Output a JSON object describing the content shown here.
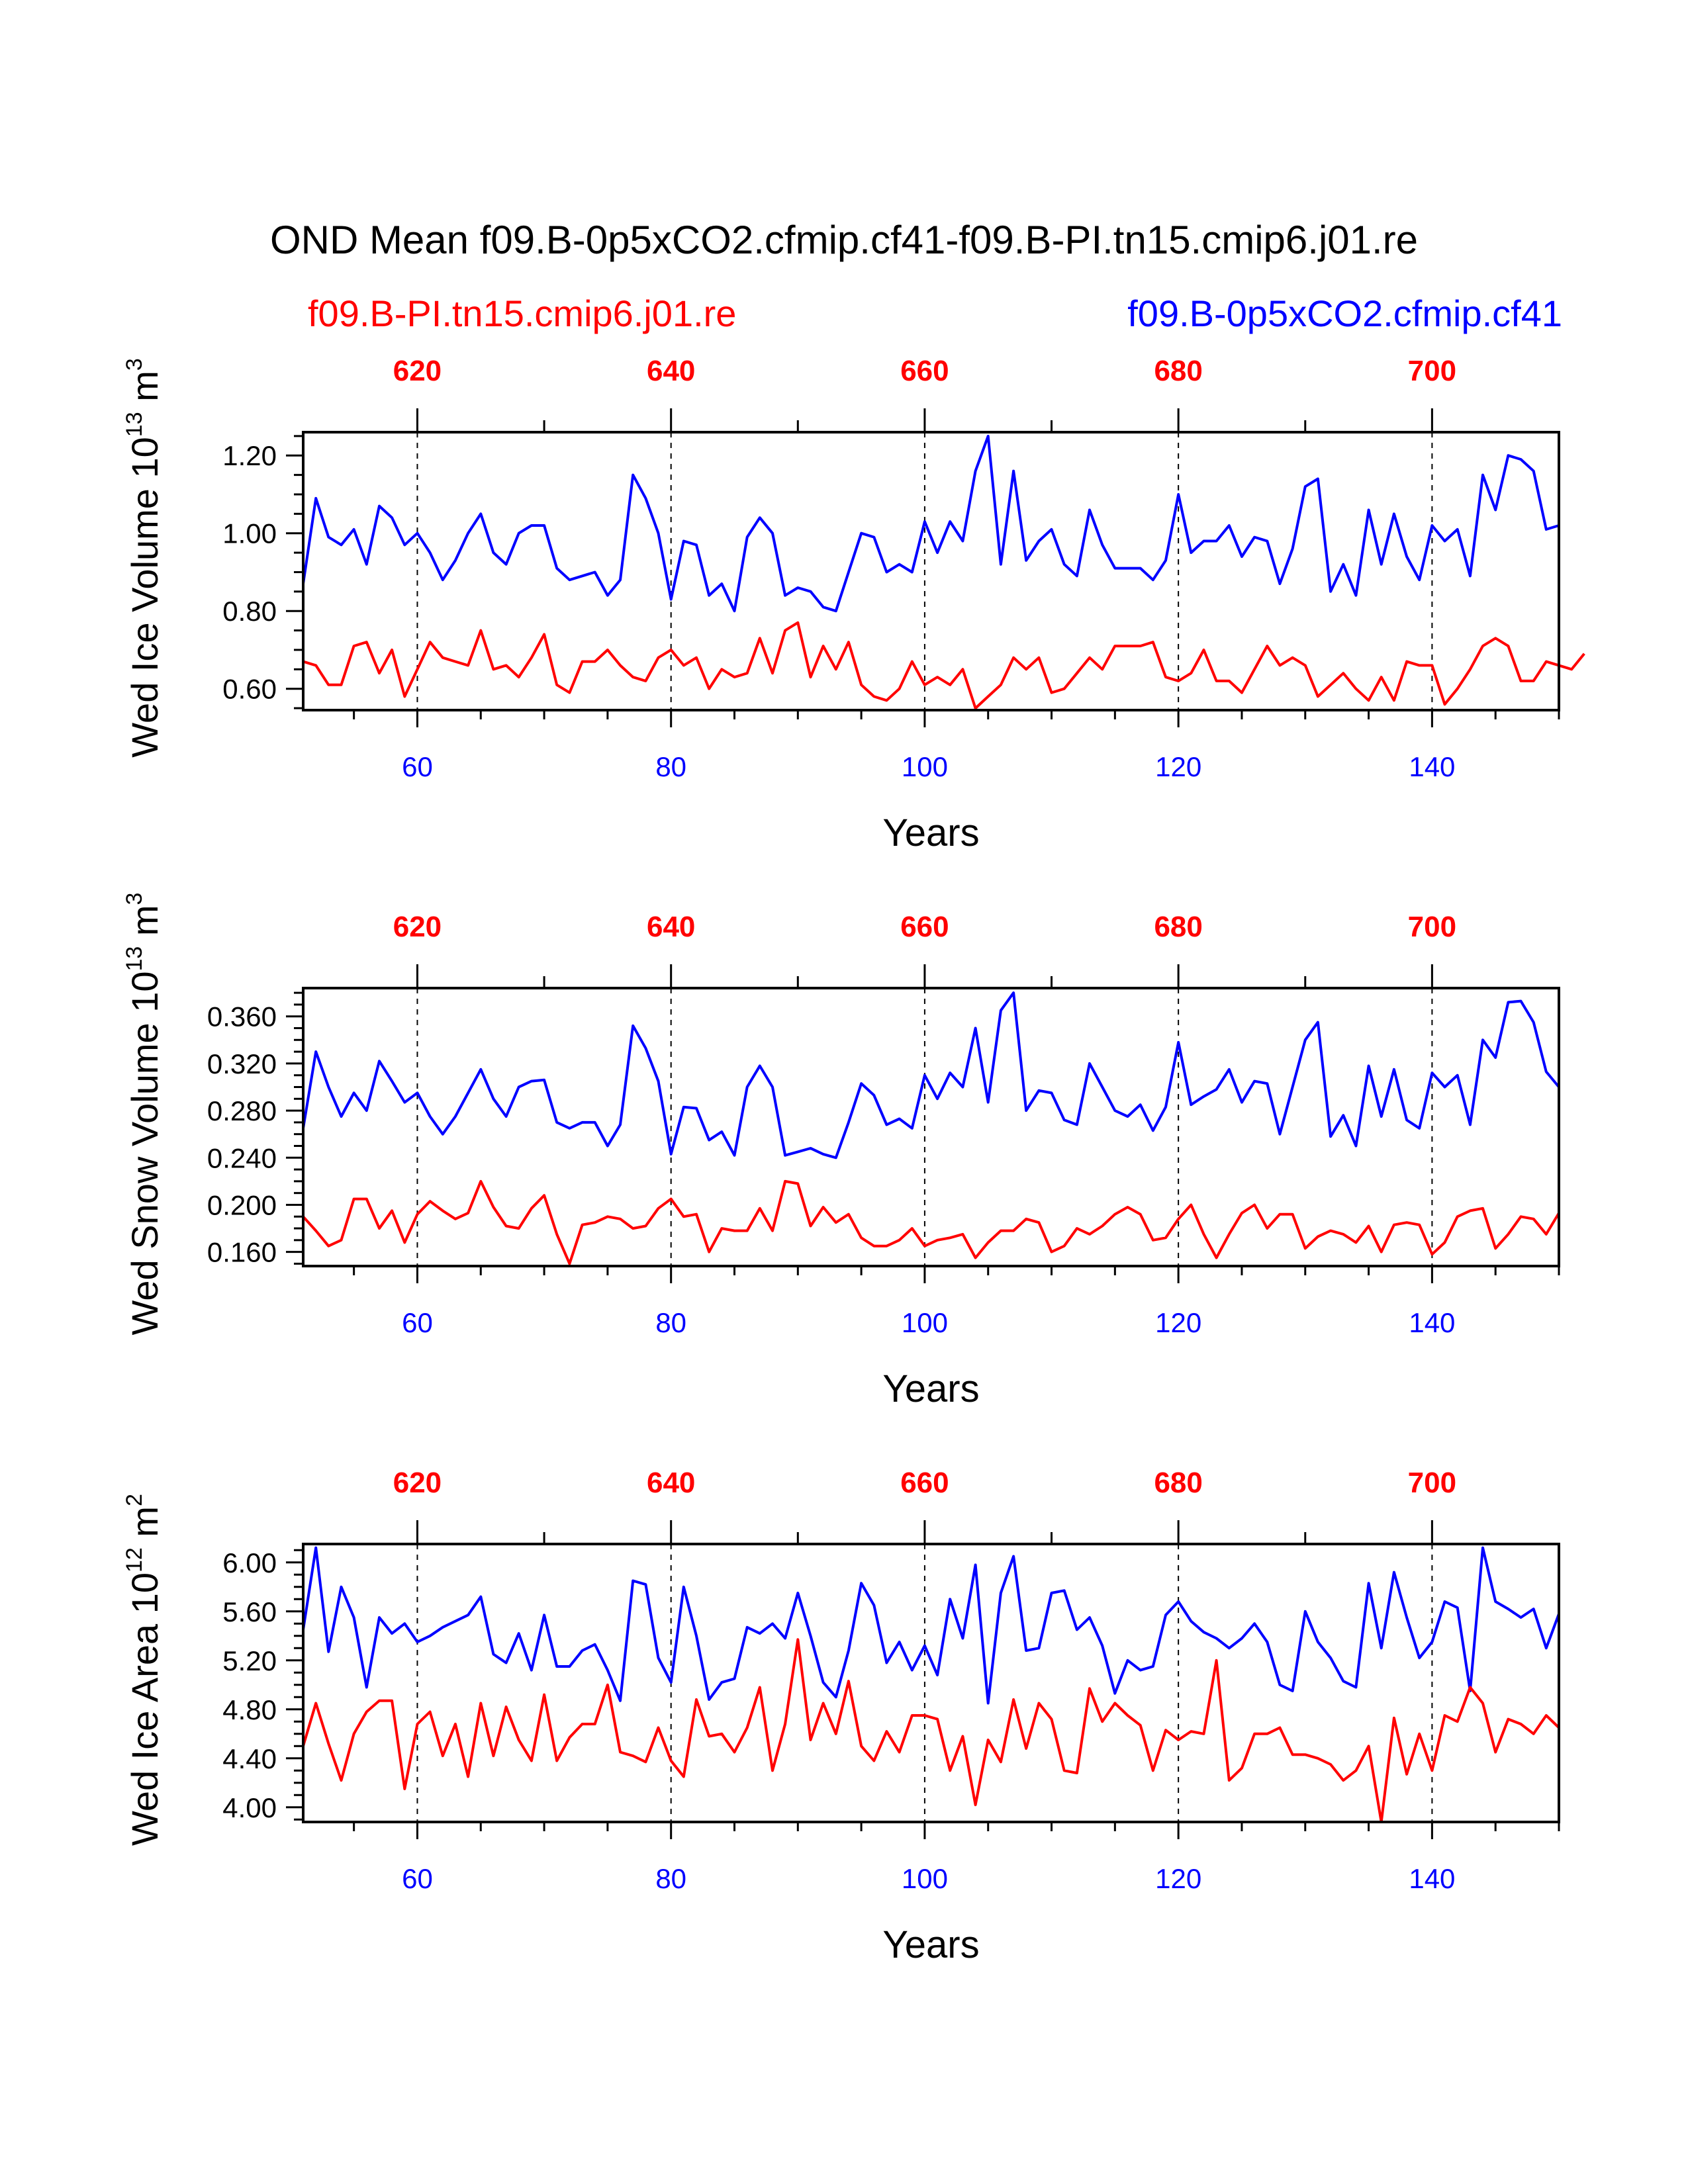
{
  "title": "OND Mean f09.B-0p5xCO2.cfmip.cf41-f09.B-PI.tn15.cmip6.j01.re",
  "legend": {
    "left": "f09.B-PI.tn15.cmip6.j01.re",
    "right": "f09.B-0p5xCO2.cfmip.cf41",
    "left_color": "#ff0000",
    "right_color": "#0000ff"
  },
  "chart_data": [
    {
      "type": "line",
      "ylabel_main": "Wed Ice Volume 10",
      "ylabel_exp": "13",
      "ylabel_unit": " m",
      "ylabel_unit_exp": "3",
      "xlabel": "Years",
      "xlim": [
        51,
        150
      ],
      "ylim": [
        0.545,
        1.26
      ],
      "yticks": [
        0.6,
        0.8,
        1.0,
        1.2
      ],
      "ytick_labels": [
        "0.60",
        "0.80",
        "1.00",
        "1.20"
      ],
      "xticks": [
        60,
        80,
        100,
        120,
        140
      ],
      "xtick_labels": [
        "60",
        "80",
        "100",
        "120",
        "140"
      ],
      "top_ticks": [
        620,
        640,
        660,
        680,
        700
      ],
      "top_tick_labels": [
        "620",
        "640",
        "660",
        "680",
        "700"
      ],
      "x_start": 51,
      "series": [
        {
          "name": "f09.B-0p5xCO2.cfmip.cf41",
          "color": "#0000ff",
          "values": [
            0.87,
            1.09,
            0.99,
            0.97,
            1.01,
            0.92,
            1.07,
            1.04,
            0.97,
            1.0,
            0.95,
            0.88,
            0.93,
            1.0,
            1.05,
            0.95,
            0.92,
            1.0,
            1.02,
            1.02,
            0.91,
            0.88,
            0.89,
            0.9,
            0.84,
            0.88,
            1.15,
            1.09,
            1.0,
            0.83,
            0.98,
            0.97,
            0.84,
            0.87,
            0.8,
            0.99,
            1.04,
            1.0,
            0.84,
            0.86,
            0.85,
            0.81,
            0.8,
            0.9,
            1.0,
            0.99,
            0.9,
            0.92,
            0.9,
            1.03,
            0.95,
            1.03,
            0.98,
            1.16,
            1.25,
            0.92,
            1.16,
            0.93,
            0.98,
            1.01,
            0.92,
            0.89,
            1.06,
            0.97,
            0.91,
            0.91,
            0.91,
            0.88,
            0.93,
            1.1,
            0.95,
            0.98,
            0.98,
            1.02,
            0.94,
            0.99,
            0.98,
            0.87,
            0.96,
            1.12,
            1.14,
            0.85,
            0.92,
            0.84,
            1.06,
            0.92,
            1.05,
            0.94,
            0.88,
            1.02,
            0.98,
            1.01,
            0.89,
            1.15,
            1.06,
            1.2,
            1.19,
            1.16,
            1.01,
            1.02
          ]
        },
        {
          "name": "f09.B-PI.tn15.cmip6.j01.re",
          "color": "#ff0000",
          "values": [
            0.67,
            0.66,
            0.61,
            0.61,
            0.71,
            0.72,
            0.64,
            0.7,
            0.58,
            0.65,
            0.72,
            0.68,
            0.67,
            0.66,
            0.75,
            0.65,
            0.66,
            0.63,
            0.68,
            0.74,
            0.61,
            0.59,
            0.67,
            0.67,
            0.7,
            0.66,
            0.63,
            0.62,
            0.68,
            0.7,
            0.66,
            0.68,
            0.6,
            0.65,
            0.63,
            0.64,
            0.73,
            0.64,
            0.75,
            0.77,
            0.63,
            0.71,
            0.65,
            0.72,
            0.61,
            0.58,
            0.57,
            0.6,
            0.67,
            0.61,
            0.63,
            0.61,
            0.65,
            0.55,
            0.58,
            0.61,
            0.68,
            0.65,
            0.68,
            0.59,
            0.6,
            0.64,
            0.68,
            0.65,
            0.71,
            0.71,
            0.71,
            0.72,
            0.63,
            0.62,
            0.64,
            0.7,
            0.62,
            0.62,
            0.59,
            0.65,
            0.71,
            0.66,
            0.68,
            0.66,
            0.58,
            0.61,
            0.64,
            0.6,
            0.57,
            0.63,
            0.57,
            0.67,
            0.66,
            0.66,
            0.56,
            0.6,
            0.65,
            0.71,
            0.73,
            0.71,
            0.62,
            0.62,
            0.67,
            0.66,
            0.65,
            0.69
          ]
        }
      ]
    },
    {
      "type": "line",
      "ylabel_main": "Wed Snow Volume 10",
      "ylabel_exp": "13",
      "ylabel_unit": " m",
      "ylabel_unit_exp": "3",
      "xlabel": "Years",
      "xlim": [
        51,
        150
      ],
      "ylim": [
        0.148,
        0.384
      ],
      "yticks": [
        0.16,
        0.2,
        0.24,
        0.28,
        0.32,
        0.36
      ],
      "ytick_labels": [
        "0.160",
        "0.200",
        "0.240",
        "0.280",
        "0.320",
        "0.360"
      ],
      "xticks": [
        60,
        80,
        100,
        120,
        140
      ],
      "xtick_labels": [
        "60",
        "80",
        "100",
        "120",
        "140"
      ],
      "top_ticks": [
        620,
        640,
        660,
        680,
        700
      ],
      "top_tick_labels": [
        "620",
        "640",
        "660",
        "680",
        "700"
      ],
      "x_start": 51,
      "series": [
        {
          "name": "f09.B-0p5xCO2.cfmip.cf41",
          "color": "#0000ff",
          "values": [
            0.265,
            0.33,
            0.3,
            0.275,
            0.295,
            0.28,
            0.322,
            0.305,
            0.287,
            0.295,
            0.275,
            0.26,
            0.275,
            0.295,
            0.315,
            0.29,
            0.275,
            0.3,
            0.305,
            0.306,
            0.27,
            0.265,
            0.27,
            0.27,
            0.25,
            0.268,
            0.352,
            0.333,
            0.305,
            0.243,
            0.283,
            0.282,
            0.255,
            0.262,
            0.242,
            0.3,
            0.318,
            0.3,
            0.242,
            0.245,
            0.248,
            0.243,
            0.24,
            0.27,
            0.303,
            0.293,
            0.268,
            0.273,
            0.265,
            0.31,
            0.29,
            0.312,
            0.3,
            0.35,
            0.287,
            0.365,
            0.38,
            0.28,
            0.297,
            0.295,
            0.272,
            0.268,
            0.32,
            0.3,
            0.28,
            0.275,
            0.285,
            0.263,
            0.283,
            0.338,
            0.285,
            0.292,
            0.298,
            0.315,
            0.287,
            0.305,
            0.303,
            0.26,
            0.3,
            0.34,
            0.355,
            0.258,
            0.276,
            0.25,
            0.318,
            0.275,
            0.315,
            0.272,
            0.265,
            0.312,
            0.3,
            0.31,
            0.268,
            0.34,
            0.325,
            0.372,
            0.373,
            0.355,
            0.313,
            0.3
          ]
        },
        {
          "name": "f09.B-PI.tn15.cmip6.j01.re",
          "color": "#ff0000",
          "values": [
            0.19,
            0.178,
            0.165,
            0.17,
            0.205,
            0.205,
            0.18,
            0.195,
            0.168,
            0.192,
            0.203,
            0.195,
            0.188,
            0.193,
            0.22,
            0.198,
            0.182,
            0.18,
            0.197,
            0.208,
            0.175,
            0.15,
            0.183,
            0.185,
            0.19,
            0.188,
            0.18,
            0.182,
            0.197,
            0.205,
            0.19,
            0.192,
            0.16,
            0.18,
            0.178,
            0.178,
            0.197,
            0.178,
            0.22,
            0.218,
            0.182,
            0.198,
            0.185,
            0.192,
            0.172,
            0.165,
            0.165,
            0.17,
            0.18,
            0.165,
            0.17,
            0.172,
            0.175,
            0.155,
            0.168,
            0.178,
            0.178,
            0.188,
            0.185,
            0.16,
            0.165,
            0.18,
            0.175,
            0.182,
            0.192,
            0.198,
            0.192,
            0.17,
            0.172,
            0.188,
            0.2,
            0.175,
            0.155,
            0.175,
            0.193,
            0.2,
            0.18,
            0.192,
            0.192,
            0.163,
            0.173,
            0.178,
            0.175,
            0.168,
            0.182,
            0.16,
            0.183,
            0.185,
            0.183,
            0.158,
            0.168,
            0.19,
            0.195,
            0.197,
            0.163,
            0.175,
            0.19,
            0.188,
            0.175,
            0.193
          ]
        }
      ]
    },
    {
      "type": "line",
      "ylabel_main": "Wed Ice Area 10",
      "ylabel_exp": "12",
      "ylabel_unit": " m",
      "ylabel_unit_exp": "2",
      "xlabel": "Years",
      "xlim": [
        51,
        150
      ],
      "ylim": [
        3.88,
        6.15
      ],
      "yticks": [
        4.0,
        4.4,
        4.8,
        5.2,
        5.6,
        6.0
      ],
      "ytick_labels": [
        "4.00",
        "4.40",
        "4.80",
        "5.20",
        "5.60",
        "6.00"
      ],
      "xticks": [
        60,
        80,
        100,
        120,
        140
      ],
      "xtick_labels": [
        "60",
        "80",
        "100",
        "120",
        "140"
      ],
      "top_ticks": [
        620,
        640,
        660,
        680,
        700
      ],
      "top_tick_labels": [
        "620",
        "640",
        "660",
        "680",
        "700"
      ],
      "x_start": 51,
      "series": [
        {
          "name": "f09.B-0p5xCO2.cfmip.cf41",
          "color": "#0000ff",
          "values": [
            5.45,
            6.12,
            5.27,
            5.8,
            5.55,
            4.98,
            5.55,
            5.42,
            5.5,
            5.35,
            5.4,
            5.47,
            5.52,
            5.57,
            5.72,
            5.25,
            5.18,
            5.42,
            5.12,
            5.57,
            5.15,
            5.15,
            5.28,
            5.33,
            5.12,
            4.87,
            5.85,
            5.82,
            5.22,
            5.02,
            5.8,
            5.4,
            4.88,
            5.02,
            5.05,
            5.47,
            5.42,
            5.5,
            5.38,
            5.75,
            5.4,
            5.02,
            4.9,
            5.28,
            5.83,
            5.65,
            5.18,
            5.35,
            5.12,
            5.32,
            5.08,
            5.7,
            5.38,
            5.98,
            4.85,
            5.75,
            6.05,
            5.28,
            5.3,
            5.75,
            5.77,
            5.45,
            5.55,
            5.32,
            4.93,
            5.2,
            5.12,
            5.15,
            5.57,
            5.68,
            5.52,
            5.43,
            5.38,
            5.3,
            5.38,
            5.5,
            5.35,
            5.0,
            4.95,
            5.6,
            5.35,
            5.22,
            5.03,
            4.98,
            5.83,
            5.3,
            5.92,
            5.55,
            5.22,
            5.35,
            5.68,
            5.63,
            4.95,
            6.12,
            5.68,
            5.62,
            5.55,
            5.62,
            5.3,
            5.58
          ]
        },
        {
          "name": "f09.B-PI.tn15.cmip6.j01.re",
          "color": "#ff0000",
          "values": [
            4.5,
            4.85,
            4.52,
            4.22,
            4.6,
            4.78,
            4.87,
            4.87,
            4.15,
            4.68,
            4.78,
            4.42,
            4.68,
            4.25,
            4.85,
            4.42,
            4.82,
            4.55,
            4.38,
            4.92,
            4.38,
            4.57,
            4.68,
            4.68,
            5.0,
            4.45,
            4.42,
            4.37,
            4.65,
            4.38,
            4.25,
            4.88,
            4.58,
            4.6,
            4.45,
            4.65,
            4.98,
            4.3,
            4.68,
            5.37,
            4.55,
            4.85,
            4.6,
            5.03,
            4.5,
            4.38,
            4.62,
            4.45,
            4.75,
            4.75,
            4.72,
            4.3,
            4.58,
            4.02,
            4.55,
            4.37,
            4.88,
            4.48,
            4.85,
            4.72,
            4.3,
            4.28,
            4.97,
            4.7,
            4.85,
            4.75,
            4.67,
            4.3,
            4.63,
            4.55,
            4.62,
            4.6,
            5.2,
            4.22,
            4.32,
            4.6,
            4.6,
            4.65,
            4.43,
            4.43,
            4.4,
            4.35,
            4.22,
            4.3,
            4.5,
            3.88,
            4.73,
            4.27,
            4.6,
            4.3,
            4.75,
            4.7,
            4.98,
            4.85,
            4.45,
            4.72,
            4.68,
            4.6,
            4.75,
            4.65
          ]
        }
      ]
    }
  ]
}
